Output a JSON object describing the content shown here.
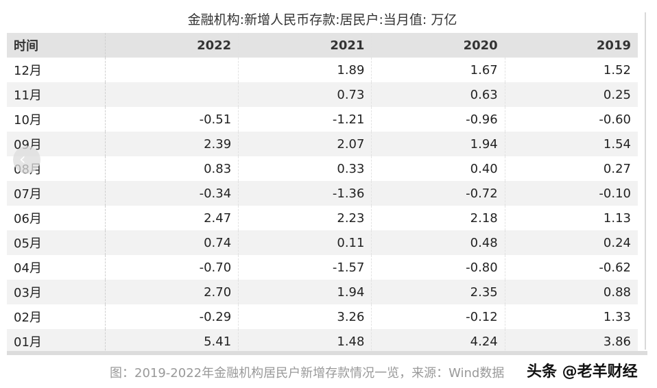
{
  "title": "金融机构:新增人民币存款:居民户:当月值: 万亿",
  "table": {
    "headers": [
      "时间",
      "2022",
      "2021",
      "2020",
      "2019"
    ],
    "rows": [
      [
        "12月",
        "",
        "1.89",
        "1.67",
        "1.52"
      ],
      [
        "11月",
        "",
        "0.73",
        "0.63",
        "0.25"
      ],
      [
        "10月",
        "-0.51",
        "-1.21",
        "-0.96",
        "-0.60"
      ],
      [
        "09月",
        "2.39",
        "2.07",
        "1.94",
        "1.54"
      ],
      [
        "08月",
        "0.83",
        "0.33",
        "0.40",
        "0.27"
      ],
      [
        "07月",
        "-0.34",
        "-1.36",
        "-0.72",
        "-0.10"
      ],
      [
        "06月",
        "2.47",
        "2.23",
        "2.18",
        "1.13"
      ],
      [
        "05月",
        "0.74",
        "0.11",
        "0.48",
        "0.24"
      ],
      [
        "04月",
        "-0.70",
        "-1.57",
        "-0.80",
        "-0.62"
      ],
      [
        "03月",
        "2.70",
        "1.94",
        "2.35",
        "0.88"
      ],
      [
        "02月",
        "-0.29",
        "3.26",
        "-0.12",
        "1.33"
      ],
      [
        "01月",
        "5.41",
        "1.48",
        "4.24",
        "3.86"
      ]
    ]
  },
  "caption": "图：2019-2022年金融机构居民户新增存款情况一览，来源：Wind数据",
  "watermark": "头条 @老羊财经",
  "nav": {
    "prev_icon": "chevron-left-icon"
  }
}
